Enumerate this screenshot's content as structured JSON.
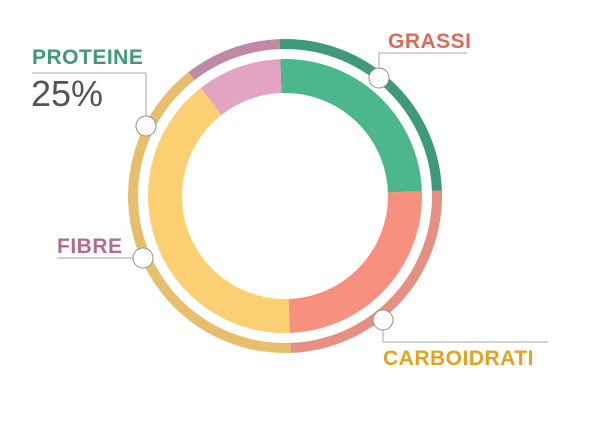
{
  "chart_data": {
    "type": "pie",
    "categories": [
      "PROTEINE",
      "GRASSI",
      "CARBOIDRATI",
      "FIBRE"
    ],
    "values": [
      25,
      25,
      40,
      10
    ],
    "highlight": {
      "category": "PROTEINE",
      "value_label": "25%"
    },
    "colors": {
      "PROTEINE": {
        "inner": "#4cb68c",
        "outer": "#3f9a78",
        "label": "#3f9a78"
      },
      "GRASSI": {
        "inner": "#f7907f",
        "outer": "#e59083",
        "label": "#e06a55"
      },
      "CARBOIDRATI": {
        "inner": "#fbcf72",
        "outer": "#e7bf6c",
        "label": "#e4a21e"
      },
      "FIBRE": {
        "inner": "#e3a4c1",
        "outer": "#c08aa6",
        "label": "#b56a90"
      }
    },
    "legend_position": "none"
  }
}
